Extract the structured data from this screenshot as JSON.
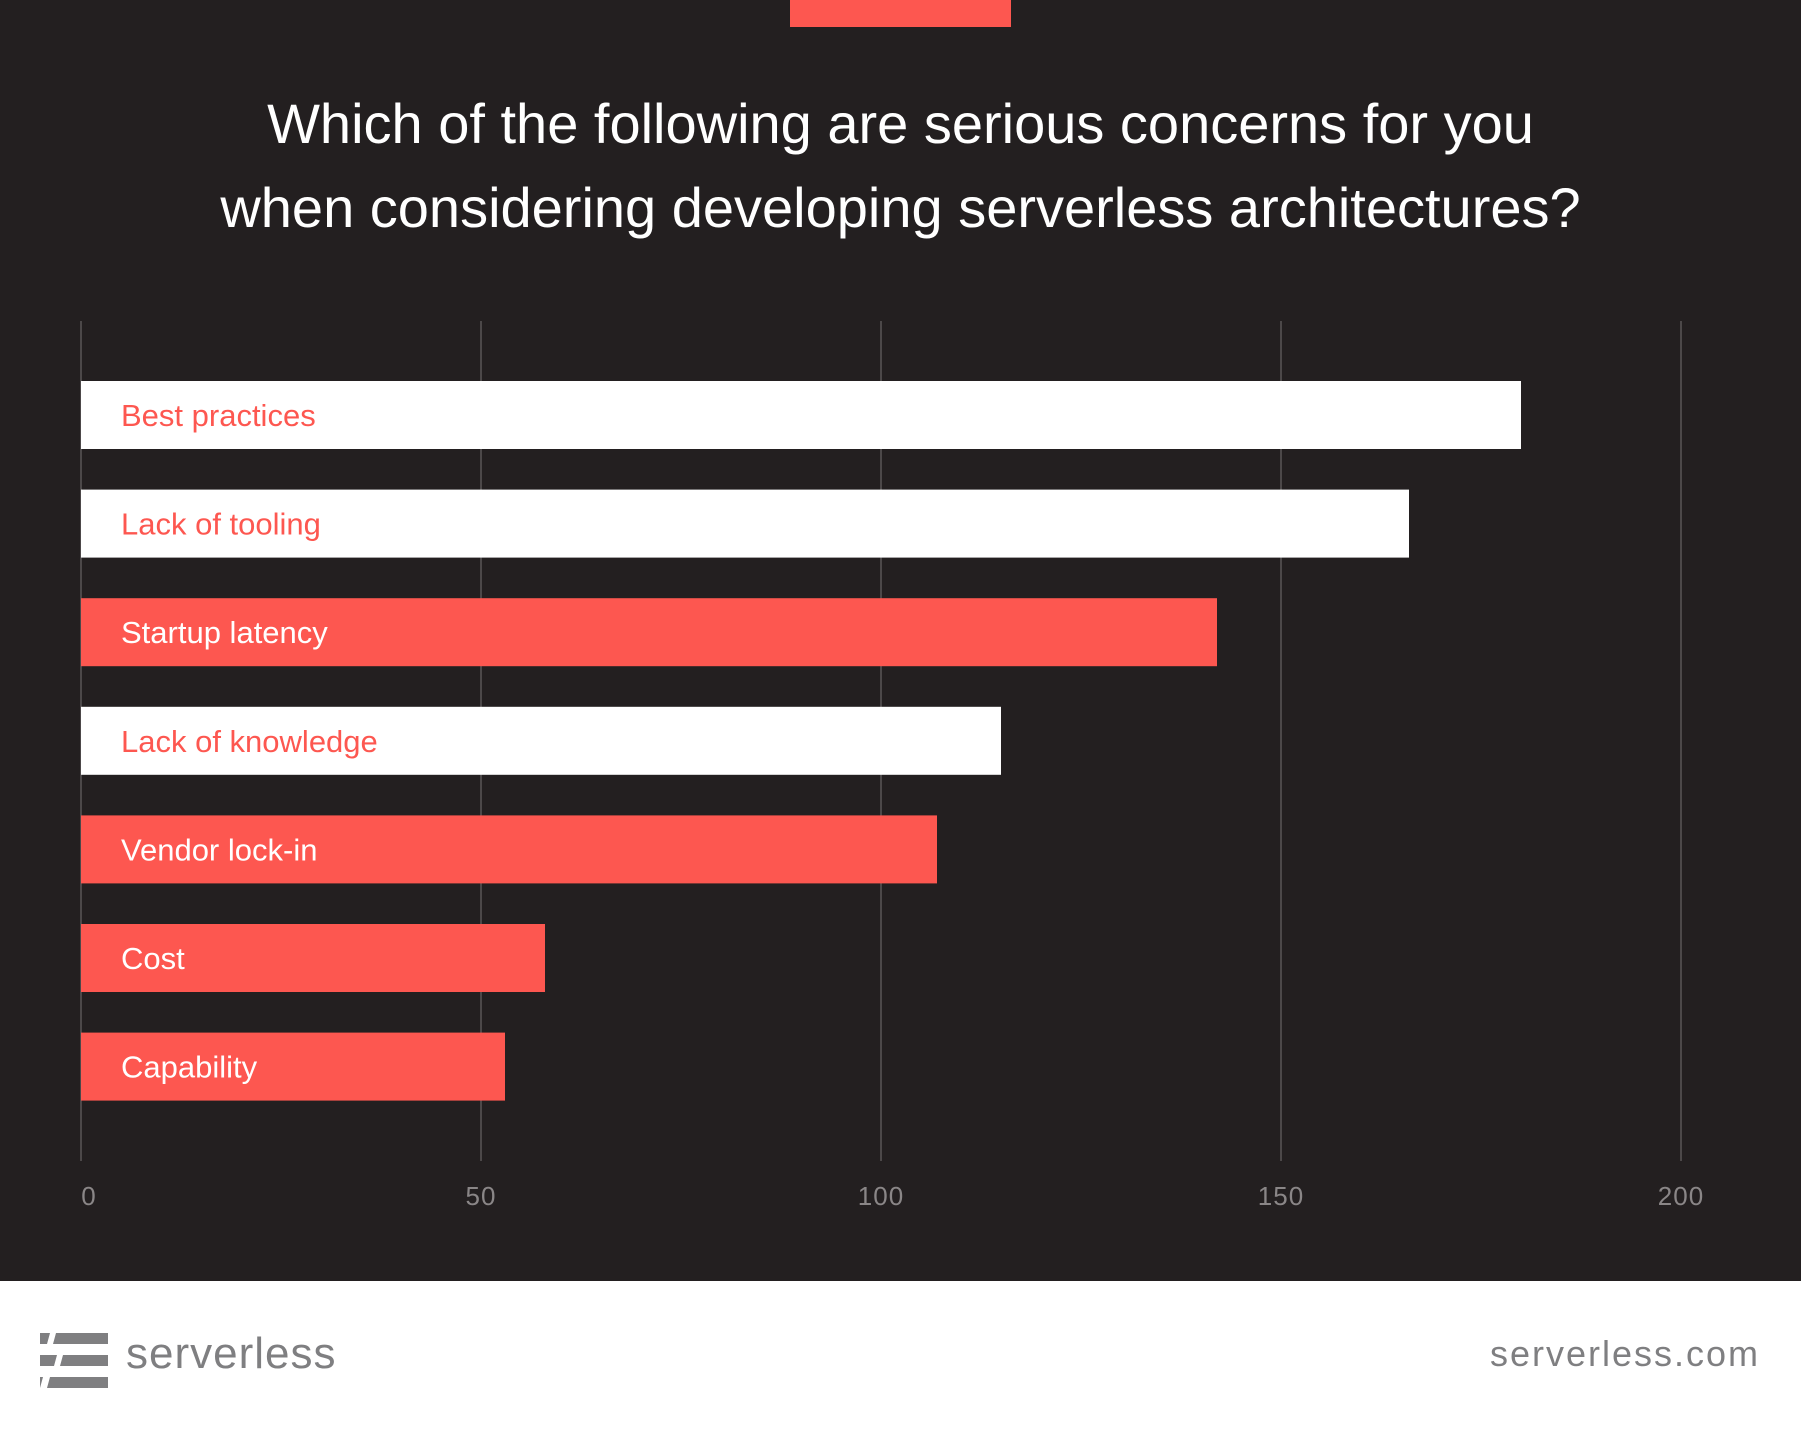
{
  "title_lines": [
    "Which of the following are serious concerns for you",
    "when considering developing serverless architectures?"
  ],
  "chart_data": {
    "type": "bar",
    "orientation": "horizontal",
    "title": "Which of the following are serious concerns for you when considering developing serverless architectures?",
    "categories": [
      "Best practices",
      "Lack of tooling",
      "Startup latency",
      "Lack of knowledge",
      "Vendor lock-in",
      "Cost",
      "Capability"
    ],
    "values": [
      180,
      166,
      142,
      115,
      107,
      58,
      53
    ],
    "xlim": [
      0,
      200
    ],
    "xticks": [
      "0",
      "50",
      "100",
      "150",
      "200"
    ],
    "grid": true,
    "legend": "none",
    "bar_styles": [
      "white",
      "white",
      "red",
      "white",
      "red",
      "red",
      "red"
    ],
    "colors": {
      "red": "#fd5750",
      "white": "#ffffff",
      "background": "#231f20",
      "grid": "#5a5657",
      "tick_label": "#8a8687"
    }
  },
  "footer": {
    "brand": "serverless",
    "url": "serverless.com",
    "logo_icon": "serverless-logo-icon"
  }
}
